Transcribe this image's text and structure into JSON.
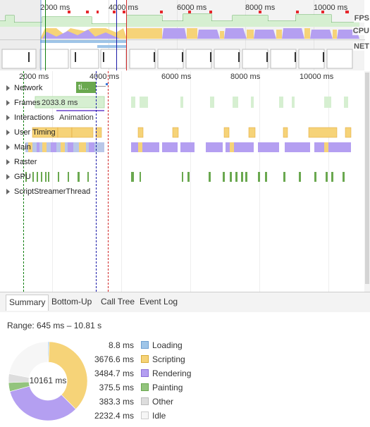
{
  "overview": {
    "ticks": [
      "2000 ms",
      "4000 ms",
      "6000 ms",
      "8000 ms",
      "10000 ms"
    ],
    "labels": {
      "fps": "FPS",
      "cpu": "CPU",
      "net": "NET"
    }
  },
  "flame": {
    "ticks": [
      "2000 ms",
      "4000 ms",
      "6000 ms",
      "8000 ms",
      "10000 ms"
    ],
    "tracks": [
      {
        "name": "Network"
      },
      {
        "name": "Frames"
      },
      {
        "name": "Interactions",
        "extra": "Animation"
      },
      {
        "name": "User Timing"
      },
      {
        "name": "Main"
      },
      {
        "name": "Raster"
      },
      {
        "name": "GPU"
      },
      {
        "name": "ScriptStreamerThread"
      }
    ],
    "network_request_label": "ti...",
    "frame_label": "2033.8 ms"
  },
  "tabs": [
    "Summary",
    "Bottom-Up",
    "Call Tree",
    "Event Log"
  ],
  "summary": {
    "range": "Range: 645 ms – 10.81 s",
    "total": "10161 ms",
    "items": [
      {
        "value": "8.8 ms",
        "name": "Loading",
        "color": "#9fc5e8",
        "border": "#6f9fd1"
      },
      {
        "value": "3676.6 ms",
        "name": "Scripting",
        "color": "#f6d378",
        "border": "#d8ad3a"
      },
      {
        "value": "3484.7 ms",
        "name": "Rendering",
        "color": "#b49ff1",
        "border": "#8b6fd8"
      },
      {
        "value": "375.5 ms",
        "name": "Painting",
        "color": "#93c47d",
        "border": "#6aa84f"
      },
      {
        "value": "383.3 ms",
        "name": "Other",
        "color": "#dddddd",
        "border": "#bbbbbb"
      },
      {
        "value": "2232.4 ms",
        "name": "Idle",
        "color": "#f6f6f6",
        "border": "#cccccc"
      }
    ]
  },
  "colors": {
    "scripting": "#f6d378",
    "rendering": "#b49ff1",
    "painting": "#93c47d",
    "loading": "#9fc5e8",
    "fps_green": "#96d18c",
    "long_task_red": "#e6262c"
  }
}
